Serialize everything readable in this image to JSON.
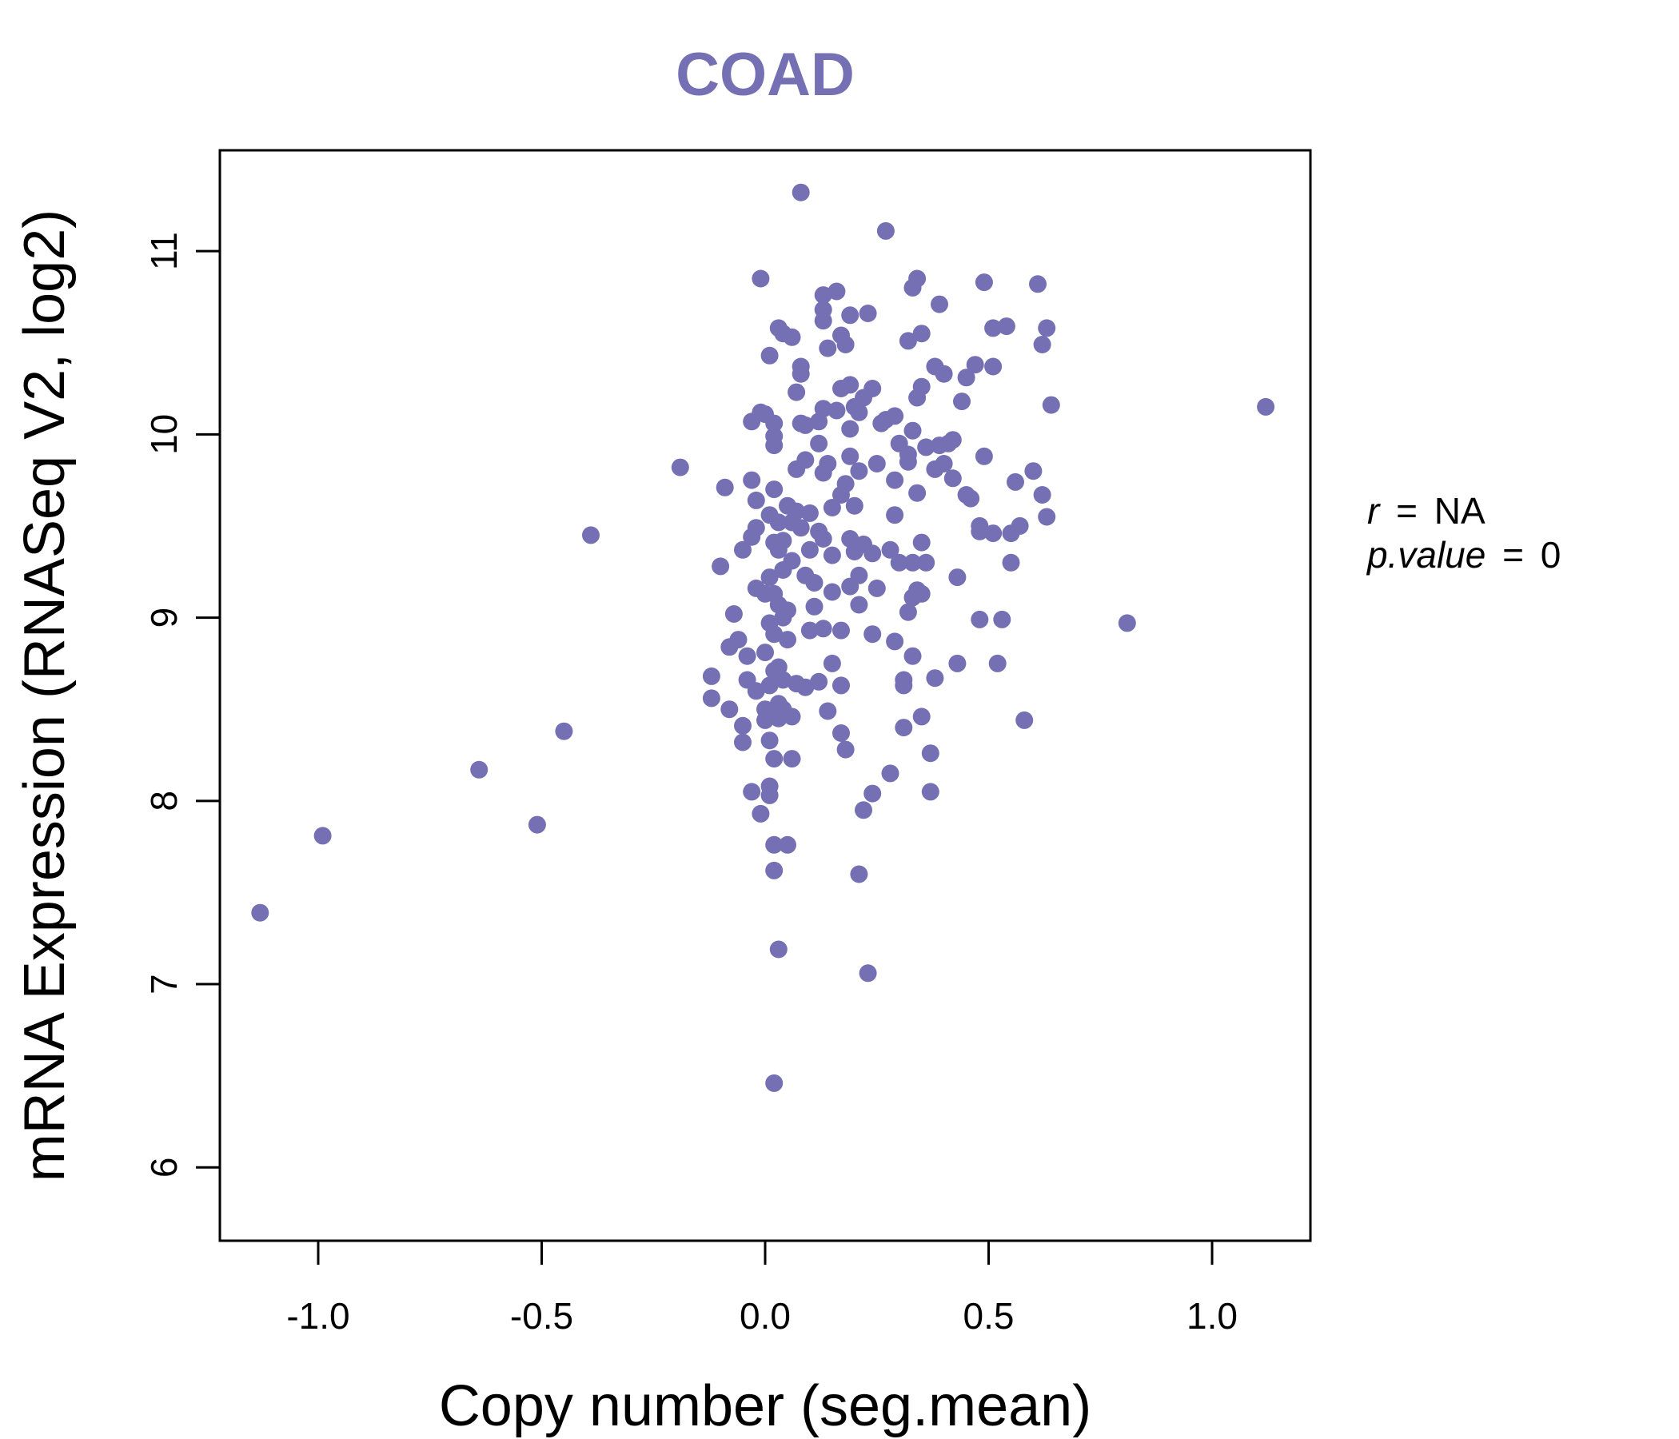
{
  "chart_data": {
    "type": "scatter",
    "title": "COAD",
    "xlabel": "Copy number (seg.mean)",
    "ylabel": "mRNA Expression (RNASeq V2, log2)",
    "xlim": [
      -1.22,
      1.22
    ],
    "ylim": [
      5.6,
      11.55
    ],
    "xticks": [
      -1.0,
      -0.5,
      0.0,
      0.5,
      1.0
    ],
    "xtick_labels": [
      "-1.0",
      "-0.5",
      "0.0",
      "0.5",
      "1.0"
    ],
    "yticks": [
      6,
      7,
      8,
      9,
      10,
      11
    ],
    "ytick_labels": [
      "6",
      "7",
      "8",
      "9",
      "10",
      "11"
    ],
    "color": "#7570b3",
    "annotation": {
      "r_label": "r",
      "r_value": "NA",
      "p_label": "p.value",
      "p_value": "0",
      "equals": "="
    },
    "points": [
      [
        -1.13,
        7.39
      ],
      [
        -0.99,
        7.81
      ],
      [
        -0.64,
        8.17
      ],
      [
        -0.51,
        7.87
      ],
      [
        -0.45,
        8.38
      ],
      [
        -0.39,
        9.45
      ],
      [
        -0.19,
        9.82
      ],
      [
        -0.12,
        8.68
      ],
      [
        -0.12,
        8.56
      ],
      [
        -0.1,
        9.28
      ],
      [
        -0.09,
        9.71
      ],
      [
        -0.08,
        8.5
      ],
      [
        -0.08,
        8.84
      ],
      [
        -0.07,
        9.02
      ],
      [
        -0.06,
        8.88
      ],
      [
        -0.05,
        8.41
      ],
      [
        -0.05,
        8.32
      ],
      [
        -0.05,
        9.37
      ],
      [
        -0.04,
        8.66
      ],
      [
        -0.04,
        8.79
      ],
      [
        -0.03,
        9.44
      ],
      [
        -0.03,
        10.07
      ],
      [
        -0.03,
        8.05
      ],
      [
        -0.03,
        9.75
      ],
      [
        -0.02,
        8.6
      ],
      [
        -0.02,
        9.64
      ],
      [
        -0.02,
        9.16
      ],
      [
        -0.02,
        9.49
      ],
      [
        -0.01,
        10.85
      ],
      [
        -0.01,
        10.12
      ],
      [
        -0.01,
        7.93
      ],
      [
        0.0,
        8.81
      ],
      [
        0.0,
        9.13
      ],
      [
        0.0,
        8.5
      ],
      [
        0.0,
        8.44
      ],
      [
        0.0,
        10.11
      ],
      [
        0.01,
        9.22
      ],
      [
        0.01,
        8.08
      ],
      [
        0.01,
        9.56
      ],
      [
        0.01,
        10.43
      ],
      [
        0.01,
        8.97
      ],
      [
        0.01,
        8.63
      ],
      [
        0.01,
        8.03
      ],
      [
        0.01,
        8.33
      ],
      [
        0.02,
        9.99
      ],
      [
        0.02,
        9.7
      ],
      [
        0.02,
        8.91
      ],
      [
        0.02,
        9.13
      ],
      [
        0.02,
        10.06
      ],
      [
        0.02,
        8.23
      ],
      [
        0.02,
        7.62
      ],
      [
        0.02,
        6.46
      ],
      [
        0.02,
        7.76
      ],
      [
        0.02,
        8.71
      ],
      [
        0.02,
        9.41
      ],
      [
        0.02,
        9.94
      ],
      [
        0.03,
        10.58
      ],
      [
        0.03,
        9.07
      ],
      [
        0.03,
        8.53
      ],
      [
        0.03,
        8.73
      ],
      [
        0.03,
        9.37
      ],
      [
        0.03,
        9.52
      ],
      [
        0.03,
        7.19
      ],
      [
        0.03,
        8.45
      ],
      [
        0.04,
        9.0
      ],
      [
        0.04,
        9.26
      ],
      [
        0.04,
        8.66
      ],
      [
        0.04,
        10.55
      ],
      [
        0.04,
        8.5
      ],
      [
        0.04,
        9.42
      ],
      [
        0.05,
        9.61
      ],
      [
        0.05,
        8.88
      ],
      [
        0.05,
        7.76
      ],
      [
        0.05,
        9.04
      ],
      [
        0.06,
        10.53
      ],
      [
        0.06,
        9.52
      ],
      [
        0.06,
        8.46
      ],
      [
        0.06,
        8.23
      ],
      [
        0.06,
        9.31
      ],
      [
        0.07,
        10.23
      ],
      [
        0.07,
        9.81
      ],
      [
        0.07,
        9.58
      ],
      [
        0.07,
        8.64
      ],
      [
        0.08,
        10.33
      ],
      [
        0.08,
        10.37
      ],
      [
        0.08,
        10.06
      ],
      [
        0.08,
        9.49
      ],
      [
        0.08,
        11.32
      ],
      [
        0.09,
        9.23
      ],
      [
        0.09,
        9.86
      ],
      [
        0.09,
        10.05
      ],
      [
        0.09,
        8.62
      ],
      [
        0.1,
        9.37
      ],
      [
        0.1,
        8.93
      ],
      [
        0.1,
        9.57
      ],
      [
        0.11,
        9.19
      ],
      [
        0.11,
        9.06
      ],
      [
        0.12,
        10.07
      ],
      [
        0.12,
        9.47
      ],
      [
        0.12,
        9.95
      ],
      [
        0.12,
        8.65
      ],
      [
        0.13,
        10.76
      ],
      [
        0.13,
        10.68
      ],
      [
        0.13,
        10.62
      ],
      [
        0.13,
        10.14
      ],
      [
        0.13,
        9.79
      ],
      [
        0.13,
        9.43
      ],
      [
        0.13,
        8.94
      ],
      [
        0.14,
        8.49
      ],
      [
        0.14,
        10.47
      ],
      [
        0.14,
        9.84
      ],
      [
        0.15,
        9.6
      ],
      [
        0.15,
        9.34
      ],
      [
        0.15,
        9.14
      ],
      [
        0.15,
        8.75
      ],
      [
        0.16,
        10.78
      ],
      [
        0.16,
        10.13
      ],
      [
        0.17,
        10.54
      ],
      [
        0.17,
        10.25
      ],
      [
        0.17,
        9.67
      ],
      [
        0.17,
        8.93
      ],
      [
        0.17,
        8.63
      ],
      [
        0.17,
        8.37
      ],
      [
        0.18,
        10.49
      ],
      [
        0.18,
        9.73
      ],
      [
        0.18,
        8.28
      ],
      [
        0.19,
        10.65
      ],
      [
        0.19,
        10.27
      ],
      [
        0.19,
        10.03
      ],
      [
        0.19,
        9.88
      ],
      [
        0.19,
        9.43
      ],
      [
        0.19,
        9.17
      ],
      [
        0.2,
        10.15
      ],
      [
        0.2,
        9.61
      ],
      [
        0.2,
        9.36
      ],
      [
        0.21,
        10.12
      ],
      [
        0.21,
        9.8
      ],
      [
        0.21,
        9.23
      ],
      [
        0.21,
        9.07
      ],
      [
        0.21,
        7.6
      ],
      [
        0.22,
        10.2
      ],
      [
        0.22,
        9.4
      ],
      [
        0.22,
        7.95
      ],
      [
        0.23,
        10.66
      ],
      [
        0.23,
        7.06
      ],
      [
        0.24,
        10.25
      ],
      [
        0.24,
        9.35
      ],
      [
        0.24,
        8.91
      ],
      [
        0.24,
        8.04
      ],
      [
        0.25,
        9.84
      ],
      [
        0.25,
        9.16
      ],
      [
        0.26,
        10.06
      ],
      [
        0.27,
        11.11
      ],
      [
        0.27,
        10.08
      ],
      [
        0.28,
        9.37
      ],
      [
        0.28,
        8.15
      ],
      [
        0.29,
        10.1
      ],
      [
        0.29,
        9.75
      ],
      [
        0.29,
        9.56
      ],
      [
        0.29,
        8.87
      ],
      [
        0.3,
        9.95
      ],
      [
        0.3,
        9.3
      ],
      [
        0.31,
        8.66
      ],
      [
        0.31,
        8.63
      ],
      [
        0.31,
        8.4
      ],
      [
        0.32,
        10.51
      ],
      [
        0.32,
        9.89
      ],
      [
        0.32,
        9.85
      ],
      [
        0.32,
        9.03
      ],
      [
        0.33,
        10.8
      ],
      [
        0.33,
        10.02
      ],
      [
        0.33,
        9.3
      ],
      [
        0.33,
        9.11
      ],
      [
        0.33,
        8.79
      ],
      [
        0.34,
        10.85
      ],
      [
        0.34,
        10.2
      ],
      [
        0.34,
        9.68
      ],
      [
        0.34,
        9.15
      ],
      [
        0.35,
        10.55
      ],
      [
        0.35,
        10.26
      ],
      [
        0.35,
        9.41
      ],
      [
        0.35,
        9.13
      ],
      [
        0.35,
        8.46
      ],
      [
        0.36,
        9.3
      ],
      [
        0.36,
        9.93
      ],
      [
        0.37,
        8.05
      ],
      [
        0.37,
        8.26
      ],
      [
        0.38,
        9.81
      ],
      [
        0.38,
        8.67
      ],
      [
        0.38,
        10.37
      ],
      [
        0.39,
        10.71
      ],
      [
        0.39,
        9.94
      ],
      [
        0.4,
        10.33
      ],
      [
        0.4,
        9.84
      ],
      [
        0.41,
        9.95
      ],
      [
        0.42,
        9.76
      ],
      [
        0.42,
        9.97
      ],
      [
        0.43,
        8.75
      ],
      [
        0.43,
        9.22
      ],
      [
        0.44,
        10.18
      ],
      [
        0.45,
        10.31
      ],
      [
        0.45,
        9.67
      ],
      [
        0.46,
        9.65
      ],
      [
        0.47,
        10.38
      ],
      [
        0.48,
        9.5
      ],
      [
        0.48,
        9.47
      ],
      [
        0.48,
        8.99
      ],
      [
        0.49,
        10.83
      ],
      [
        0.49,
        9.88
      ],
      [
        0.51,
        10.58
      ],
      [
        0.51,
        10.37
      ],
      [
        0.51,
        9.46
      ],
      [
        0.52,
        8.75
      ],
      [
        0.53,
        8.99
      ],
      [
        0.54,
        10.59
      ],
      [
        0.55,
        9.46
      ],
      [
        0.55,
        9.3
      ],
      [
        0.56,
        9.74
      ],
      [
        0.57,
        9.5
      ],
      [
        0.58,
        8.44
      ],
      [
        0.6,
        9.8
      ],
      [
        0.61,
        10.82
      ],
      [
        0.62,
        10.49
      ],
      [
        0.62,
        9.67
      ],
      [
        0.63,
        10.58
      ],
      [
        0.63,
        9.55
      ],
      [
        0.64,
        10.16
      ],
      [
        0.81,
        8.97
      ],
      [
        1.12,
        10.15
      ]
    ]
  }
}
